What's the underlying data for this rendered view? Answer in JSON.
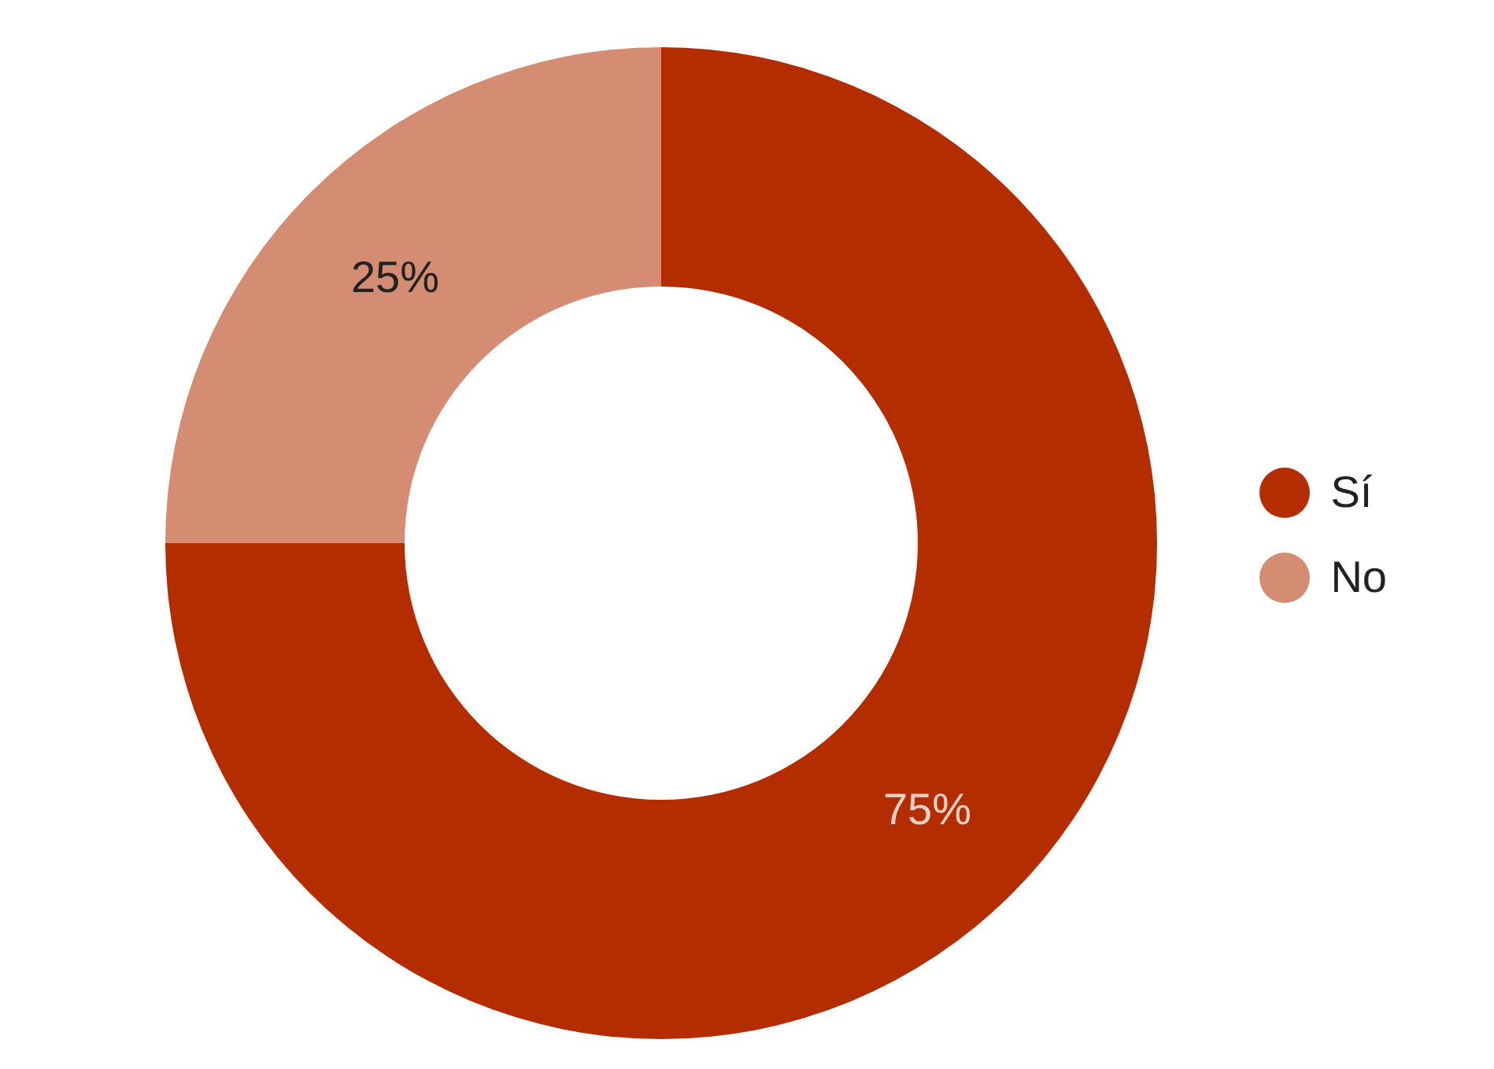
{
  "chart_data": {
    "type": "donut",
    "categories": [
      "Sí",
      "No"
    ],
    "values": [
      75,
      25
    ],
    "colors": [
      "#b32d00",
      "#d48c72"
    ],
    "value_labels": [
      "75%",
      "25%"
    ],
    "legend": "right"
  }
}
